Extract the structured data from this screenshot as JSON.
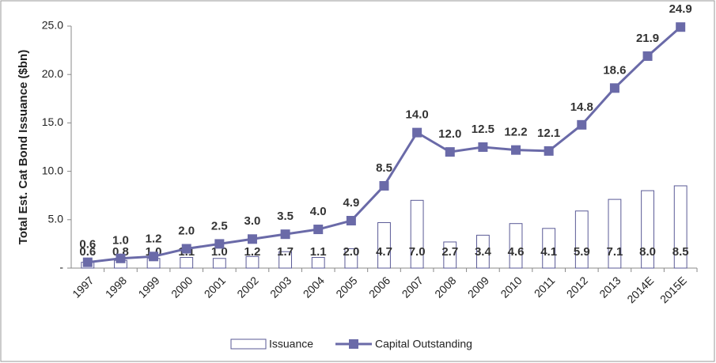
{
  "chart_data": {
    "type": "bar",
    "y_label": "Total Est. Cat Bond Issuance ($bn)",
    "categories": [
      "1997",
      "1998",
      "1999",
      "2000",
      "2001",
      "2002",
      "2003",
      "2004",
      "2005",
      "2006",
      "2007",
      "2008",
      "2009",
      "2010",
      "2011",
      "2012",
      "2013",
      "2014E",
      "2015E"
    ],
    "series": [
      {
        "name": "Issuance",
        "type": "bar",
        "color": "#5a5a96",
        "values": [
          0.6,
          0.8,
          1.0,
          1.1,
          1.0,
          1.2,
          1.7,
          1.1,
          2.0,
          4.7,
          7.0,
          2.7,
          3.4,
          4.6,
          4.1,
          5.9,
          7.1,
          8.0,
          8.5
        ],
        "value_labels": [
          "0.6",
          "0.8",
          "1.0",
          "1.1",
          "1.0",
          "1.2",
          "1.7",
          "1.1",
          "2.0",
          "4.7",
          "7.0",
          "2.7",
          "3.4",
          "4.6",
          "4.1",
          "5.9",
          "7.1",
          "8.0",
          "8.5"
        ]
      },
      {
        "name": "Capital Outstanding",
        "type": "line",
        "color": "#6a6aa8",
        "values": [
          0.6,
          1.0,
          1.2,
          2.0,
          2.5,
          3.0,
          3.5,
          4.0,
          4.9,
          8.5,
          14.0,
          12.0,
          12.5,
          12.2,
          12.1,
          14.8,
          18.6,
          21.9,
          24.9
        ],
        "value_labels": [
          "0.6",
          "1.0",
          "1.2",
          "2.0",
          "2.5",
          "3.0",
          "3.5",
          "4.0",
          "4.9",
          "8.5",
          "14.0",
          "12.0",
          "12.5",
          "12.2",
          "12.1",
          "14.8",
          "18.6",
          "21.9",
          "24.9"
        ]
      }
    ],
    "ylim": [
      0,
      25
    ],
    "yticks": [
      {
        "value": 0,
        "label": "-"
      },
      {
        "value": 5,
        "label": "5.0"
      },
      {
        "value": 10,
        "label": "10.0"
      },
      {
        "value": 15,
        "label": "15.0"
      },
      {
        "value": 20,
        "label": "20.0"
      },
      {
        "value": 25,
        "label": "25.0"
      }
    ],
    "grid": false,
    "legend": "bottom"
  }
}
